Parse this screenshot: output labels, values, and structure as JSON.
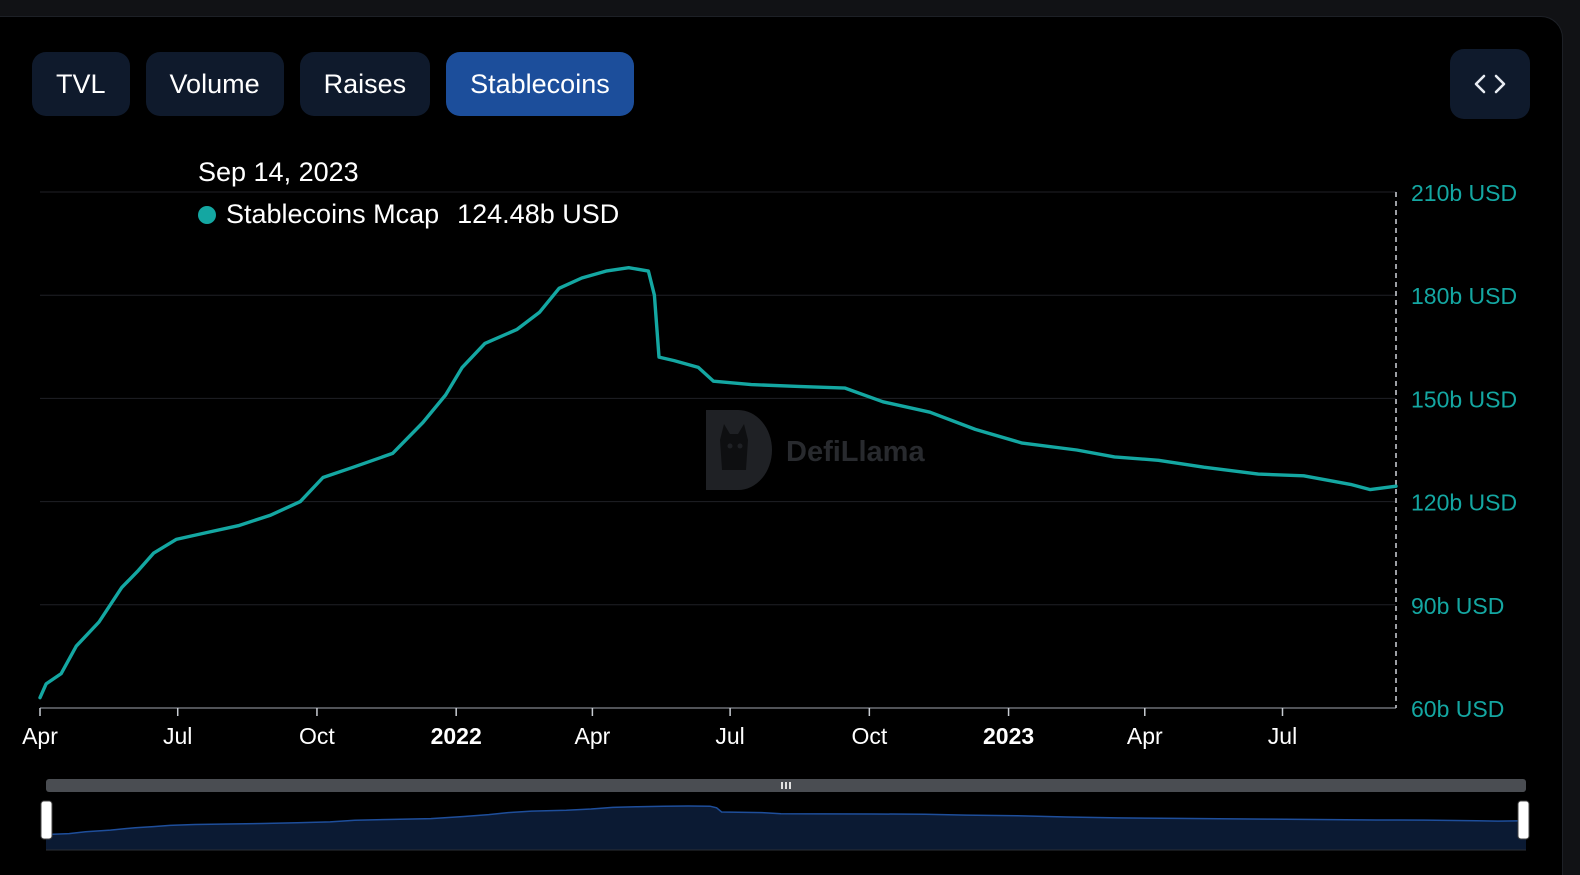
{
  "tabs": [
    {
      "label": "TVL",
      "active": false
    },
    {
      "label": "Volume",
      "active": false
    },
    {
      "label": "Raises",
      "active": false
    },
    {
      "label": "Stablecoins",
      "active": true
    }
  ],
  "embed_button": {
    "icon": "code-icon"
  },
  "tooltip": {
    "date": "Sep 14, 2023",
    "series": "Stablecoins Mcap",
    "value": "124.48b USD"
  },
  "watermark": {
    "text": "DefiLlama",
    "icon": "llama-logo-icon"
  },
  "colors": {
    "line": "#14a7a2",
    "tab_active": "#1c4e9b",
    "tab": "#0f1a2c",
    "brush_fill": "#0b1a33",
    "brush_line": "#1e4e9b"
  },
  "chart_data": {
    "type": "line",
    "title": "",
    "xlabel": "",
    "ylabel": "",
    "x_range": [
      "2021-04-01",
      "2023-09-14"
    ],
    "y_range": [
      60,
      210
    ],
    "y_unit": "b USD",
    "yticks": [
      "210b USD",
      "180b USD",
      "150b USD",
      "120b USD",
      "90b USD",
      "60b USD"
    ],
    "yticks_values": [
      210,
      180,
      150,
      120,
      90,
      60
    ],
    "xticks": [
      {
        "label": "Apr",
        "date": "2021-04-01",
        "bold": false
      },
      {
        "label": "Jul",
        "date": "2021-07-01",
        "bold": false
      },
      {
        "label": "Oct",
        "date": "2021-10-01",
        "bold": false
      },
      {
        "label": "2022",
        "date": "2022-01-01",
        "bold": true
      },
      {
        "label": "Apr",
        "date": "2022-04-01",
        "bold": false
      },
      {
        "label": "Jul",
        "date": "2022-07-01",
        "bold": false
      },
      {
        "label": "Oct",
        "date": "2022-10-01",
        "bold": false
      },
      {
        "label": "2023",
        "date": "2023-01-01",
        "bold": true
      },
      {
        "label": "Apr",
        "date": "2023-04-01",
        "bold": false
      },
      {
        "label": "Jul",
        "date": "2023-07-01",
        "bold": false
      }
    ],
    "grid": true,
    "series": [
      {
        "name": "Stablecoins Mcap",
        "points": [
          [
            "2021-04-01",
            63
          ],
          [
            "2021-04-05",
            67
          ],
          [
            "2021-04-15",
            70
          ],
          [
            "2021-04-25",
            78
          ],
          [
            "2021-05-10",
            85
          ],
          [
            "2021-05-25",
            95
          ],
          [
            "2021-06-05",
            100
          ],
          [
            "2021-06-15",
            105
          ],
          [
            "2021-06-30",
            109
          ],
          [
            "2021-07-20",
            111
          ],
          [
            "2021-08-10",
            113
          ],
          [
            "2021-08-31",
            116
          ],
          [
            "2021-09-20",
            120
          ],
          [
            "2021-10-05",
            127
          ],
          [
            "2021-10-25",
            130
          ],
          [
            "2021-11-20",
            134
          ],
          [
            "2021-12-10",
            143
          ],
          [
            "2021-12-25",
            151
          ],
          [
            "2022-01-05",
            159
          ],
          [
            "2022-01-20",
            166
          ],
          [
            "2022-02-10",
            170
          ],
          [
            "2022-02-25",
            175
          ],
          [
            "2022-03-10",
            182
          ],
          [
            "2022-03-25",
            185
          ],
          [
            "2022-04-10",
            187
          ],
          [
            "2022-04-25",
            188
          ],
          [
            "2022-05-08",
            187
          ],
          [
            "2022-05-12",
            180
          ],
          [
            "2022-05-15",
            162
          ],
          [
            "2022-05-25",
            161
          ],
          [
            "2022-06-10",
            159
          ],
          [
            "2022-06-20",
            155
          ],
          [
            "2022-07-15",
            154
          ],
          [
            "2022-08-15",
            153.5
          ],
          [
            "2022-09-15",
            153
          ],
          [
            "2022-10-10",
            149
          ],
          [
            "2022-11-10",
            146
          ],
          [
            "2022-12-10",
            141
          ],
          [
            "2023-01-10",
            137
          ],
          [
            "2023-02-15",
            135
          ],
          [
            "2023-03-12",
            133
          ],
          [
            "2023-04-10",
            132
          ],
          [
            "2023-05-10",
            130
          ],
          [
            "2023-06-15",
            128
          ],
          [
            "2023-07-15",
            127.5
          ],
          [
            "2023-08-15",
            125
          ],
          [
            "2023-08-28",
            123.5
          ],
          [
            "2023-09-14",
            124.48
          ]
        ]
      }
    ],
    "tooltip_date": "2023-09-14"
  }
}
